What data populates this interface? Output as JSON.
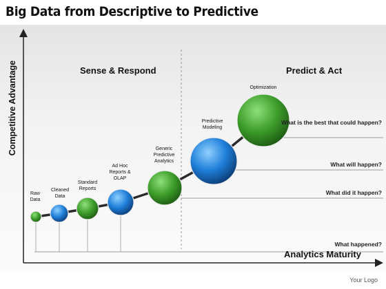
{
  "title": "Big Data from Descriptive to Predictive",
  "axes": {
    "y_label": "Competitive Advantage",
    "x_label": "Analytics Maturity"
  },
  "sections": {
    "left": "Sense & Respond",
    "right": "Predict & Act"
  },
  "questions": [
    "What is the best that could happen?",
    "What will happen?",
    "What did it happen?",
    "What happened?"
  ],
  "stages": [
    {
      "label": "Raw Data",
      "color": "#3e9e2b"
    },
    {
      "label": "Cleaned Data",
      "color": "#1f7fd9"
    },
    {
      "label": "Standard Reports",
      "color": "#3e9e2b"
    },
    {
      "label": "Ad Hoc Reports & OLAP",
      "color": "#1f7fd9"
    },
    {
      "label": "Generic Predictive Analytics",
      "color": "#3e9e2b"
    },
    {
      "label": "Predictive Modeling",
      "color": "#1f7fd9"
    },
    {
      "label": "Optimization",
      "color": "#3e9e2b"
    }
  ],
  "footer": {
    "logo": "Your Logo"
  }
}
